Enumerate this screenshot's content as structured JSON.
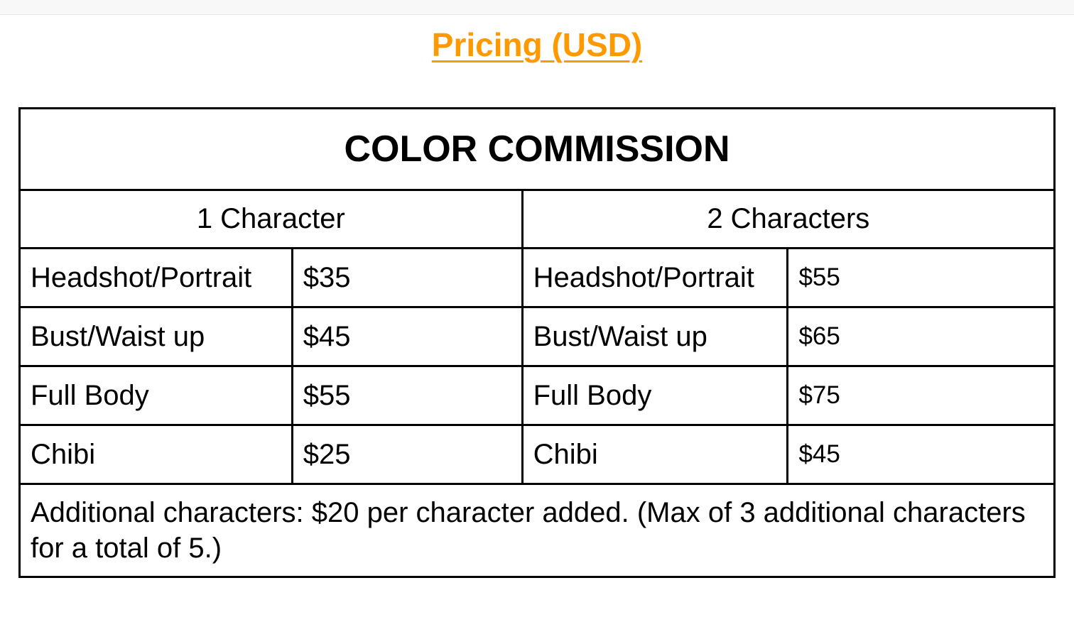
{
  "heading": "Pricing (USD)",
  "table": {
    "title": "COLOR COMMISSION",
    "headers": [
      "1 Character",
      "2 Characters"
    ],
    "rows": [
      {
        "type": "Headshot/Portrait",
        "price1": "$35",
        "price2": "$55"
      },
      {
        "type": "Bust/Waist up",
        "price1": "$45",
        "price2": "$65"
      },
      {
        "type": "Full Body",
        "price1": "$55",
        "price2": "$75"
      },
      {
        "type": "Chibi",
        "price1": "$25",
        "price2": "$45"
      }
    ],
    "footer": "Additional characters: $20 per character added. (Max of 3 additional characters for a total of 5.)"
  },
  "colors": {
    "heading": "#ff9900"
  }
}
